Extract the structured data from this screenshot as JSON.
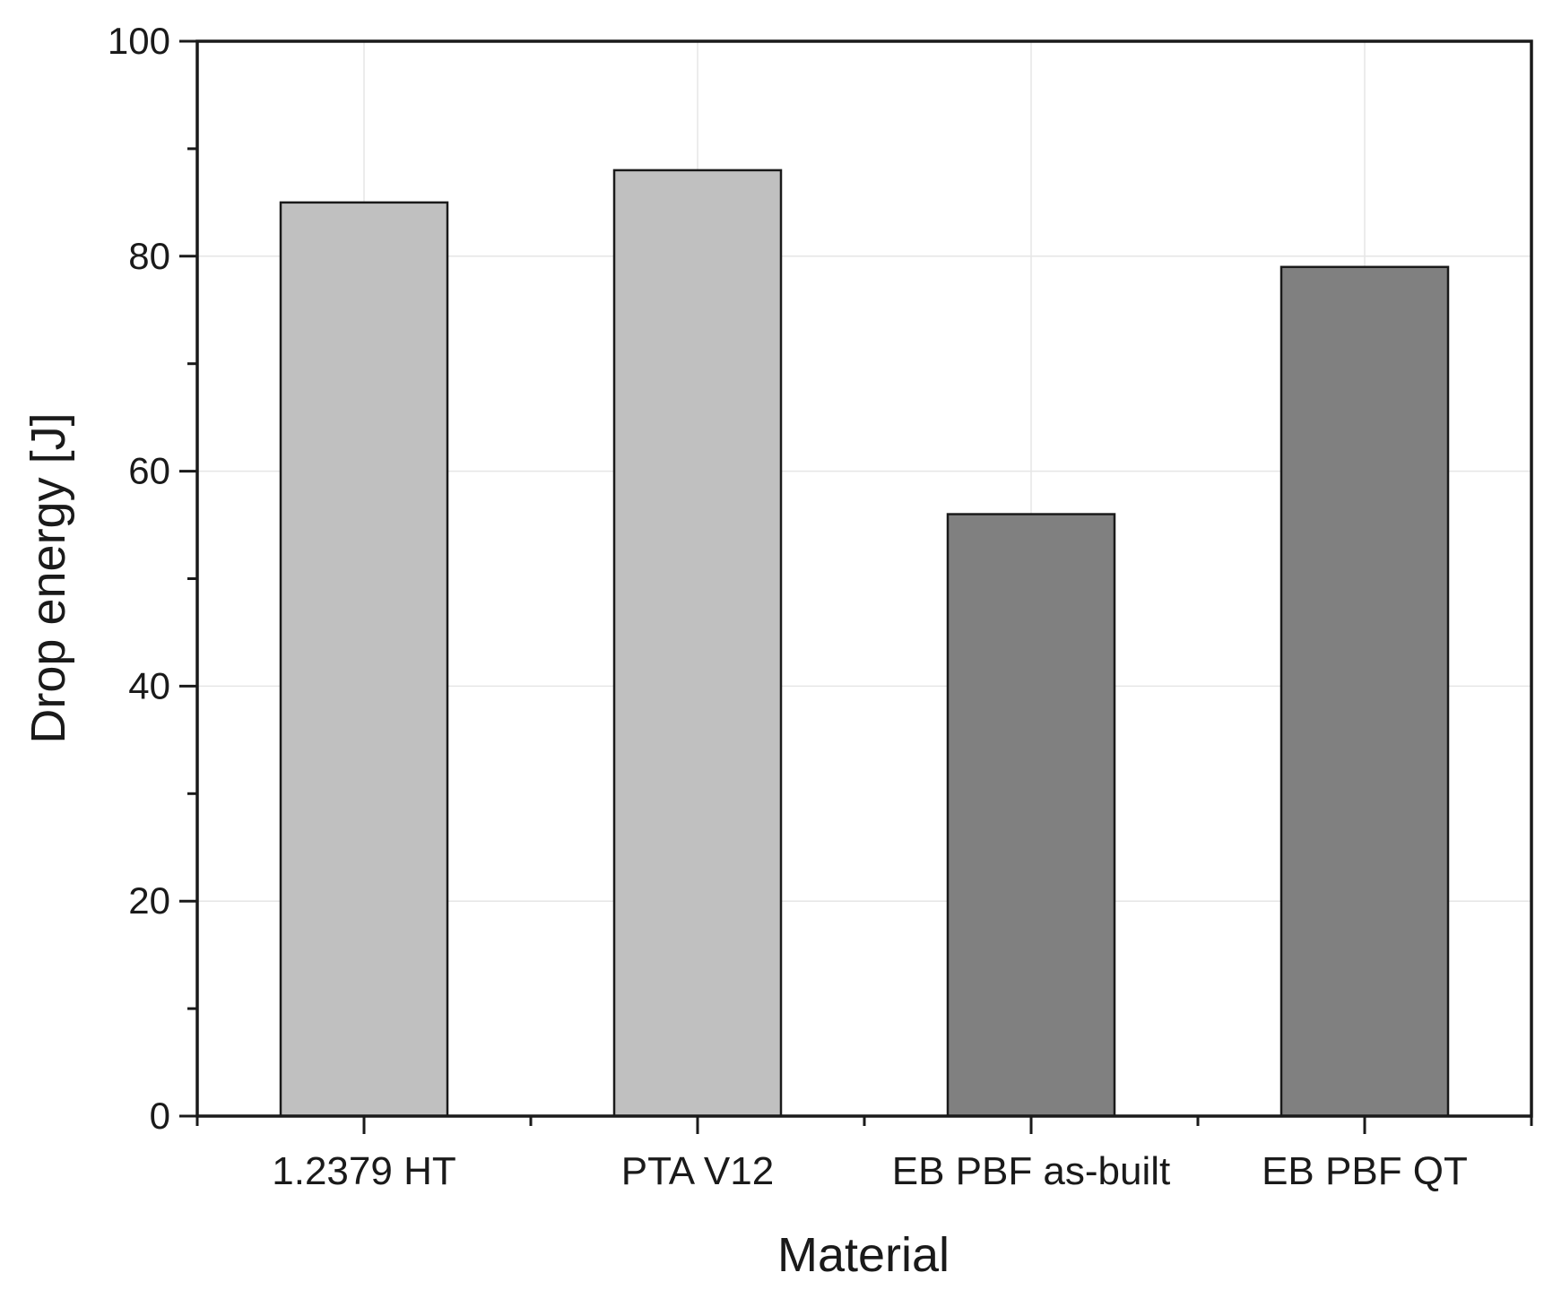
{
  "chart_data": {
    "type": "bar",
    "title": "",
    "xlabel": "Material",
    "ylabel": "Drop energy [J]",
    "categories": [
      "1.2379 HT",
      "PTA V12",
      "EB PBF as-built",
      "EB PBF QT"
    ],
    "values": [
      85,
      88,
      56,
      79
    ],
    "bar_colors": [
      "#c0c0c0",
      "#c0c0c0",
      "#808080",
      "#808080"
    ],
    "ylim": [
      0,
      100
    ],
    "yticks_major": [
      0,
      20,
      40,
      60,
      80,
      100
    ],
    "yticks_minor": [
      10,
      30,
      50,
      70,
      90
    ],
    "grid": true,
    "legend": false
  }
}
